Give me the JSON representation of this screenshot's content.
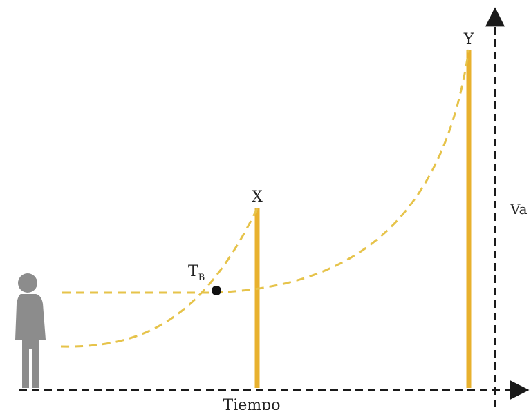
{
  "diagram": {
    "labels": {
      "x_point": "X",
      "y_point": "Y",
      "tb_main": "T",
      "tb_sub": "B",
      "x_axis": "Tiempo",
      "y_axis": "Va"
    },
    "colors": {
      "background": "#ffffff",
      "bar": "#e8b12e",
      "curve": "#e6c34a",
      "axis": "#1a1a1a",
      "person": "#8c8c8c",
      "point": "#111111"
    }
  }
}
